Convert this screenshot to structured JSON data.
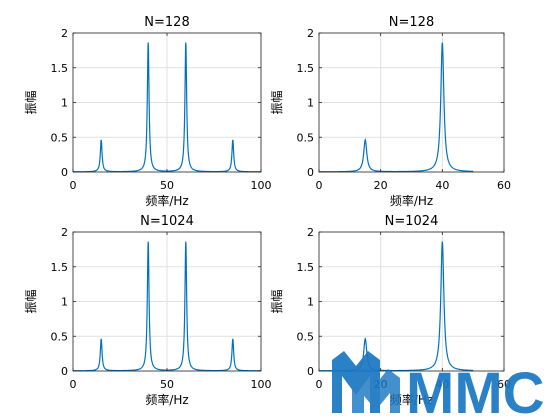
{
  "figure": {
    "watermark_text": "MMC"
  },
  "chart_data": [
    {
      "type": "line",
      "title": "N=128",
      "xlabel": "频率/Hz",
      "ylabel": "振幅",
      "xlim": [
        0,
        100
      ],
      "ylim": [
        0,
        2
      ],
      "xticks": [
        0,
        50,
        100
      ],
      "yticks": [
        0,
        0.5,
        1,
        1.5,
        2
      ],
      "xtick_labels": [
        "0",
        "50",
        "100"
      ],
      "ytick_labels": [
        "0",
        "0.5",
        "1",
        "1.5",
        "2"
      ],
      "grid": true,
      "line_color": "#0072BD",
      "peaks": [
        {
          "x": 15,
          "y": 0.46
        },
        {
          "x": 40,
          "y": 1.86
        },
        {
          "x": 60,
          "y": 1.86
        },
        {
          "x": 85,
          "y": 0.46
        }
      ]
    },
    {
      "type": "line",
      "title": "N=128",
      "xlabel": "频率/Hz",
      "ylabel": "振幅",
      "xlim": [
        0,
        60
      ],
      "ylim": [
        0,
        2
      ],
      "xticks": [
        0,
        20,
        40,
        60
      ],
      "yticks": [
        0,
        0.5,
        1,
        1.5,
        2
      ],
      "xtick_labels": [
        "0",
        "20",
        "40",
        "60"
      ],
      "ytick_labels": [
        "0",
        "0.5",
        "1",
        "1.5",
        "2"
      ],
      "grid": true,
      "line_color": "#0072BD",
      "x_data_max": 50,
      "peaks": [
        {
          "x": 15,
          "y": 0.46
        },
        {
          "x": 40,
          "y": 1.86
        }
      ]
    },
    {
      "type": "line",
      "title": "N=1024",
      "xlabel": "频率/Hz",
      "ylabel": "振幅",
      "xlim": [
        0,
        100
      ],
      "ylim": [
        0,
        2
      ],
      "xticks": [
        0,
        50,
        100
      ],
      "yticks": [
        0,
        0.5,
        1,
        1.5,
        2
      ],
      "xtick_labels": [
        "0",
        "50",
        "100"
      ],
      "ytick_labels": [
        "0",
        "0.5",
        "1",
        "1.5",
        "2"
      ],
      "grid": true,
      "line_color": "#0072BD",
      "peaks": [
        {
          "x": 15,
          "y": 0.46
        },
        {
          "x": 40,
          "y": 1.86
        },
        {
          "x": 60,
          "y": 1.86
        },
        {
          "x": 85,
          "y": 0.46
        }
      ]
    },
    {
      "type": "line",
      "title": "N=1024",
      "xlabel": "频率/Hz",
      "ylabel": "振幅",
      "xlim": [
        0,
        60
      ],
      "ylim": [
        0,
        2
      ],
      "xticks": [
        0,
        20,
        40,
        60
      ],
      "yticks": [
        0,
        0.5,
        1,
        1.5,
        2
      ],
      "xtick_labels": [
        "0",
        "20",
        "40",
        "60"
      ],
      "ytick_labels": [
        "0",
        "0.5",
        "1",
        "1.5",
        "2"
      ],
      "grid": true,
      "line_color": "#0072BD",
      "x_data_max": 50,
      "peaks": [
        {
          "x": 15,
          "y": 0.46
        },
        {
          "x": 40,
          "y": 1.86
        }
      ]
    }
  ]
}
